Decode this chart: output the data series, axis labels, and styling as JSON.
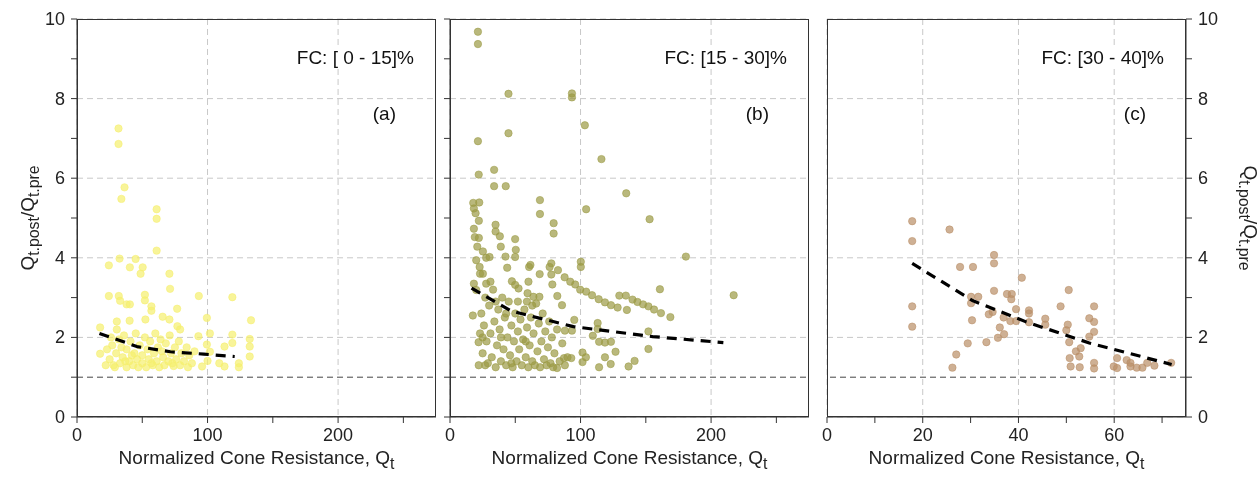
{
  "chart_data": [
    {
      "type": "scatter",
      "xlabel": "Normalized Cone Resistance, Q$_{t}$",
      "ylabel": "Q$_{t.post}$/Q$_{t.pre}$",
      "annotations": [
        "FC: [ 0 - 15]%",
        "(a)"
      ],
      "xlim": [
        0,
        275
      ],
      "xticks": [
        0,
        {
          "value": 50,
          "label": null
        },
        100,
        {
          "value": 150,
          "label": null
        },
        200,
        {
          "value": 250,
          "label": null
        }
      ],
      "ylim": [
        0,
        10
      ],
      "yticks": [
        0,
        {
          "value": 1,
          "label": null
        },
        2,
        {
          "value": 3,
          "label": null
        },
        4,
        {
          "value": 5,
          "label": null
        },
        6,
        {
          "value": 7,
          "label": null
        },
        8,
        {
          "value": 9,
          "label": null
        },
        10
      ],
      "grid": true,
      "marker": "circle",
      "ref_lines": [
        {
          "axis": "y",
          "value": 1,
          "color": "#444444",
          "line_style": "dashed"
        }
      ],
      "series": [
        {
          "color": "#f5ef6e",
          "x": [
            31.8,
            31.8,
            36.4,
            34,
            61,
            61,
            61,
            32.6,
            44.9,
            24.4,
            40.5,
            50.3,
            48.7,
            70.8,
            71.3,
            24.4,
            32,
            33,
            38,
            40.5,
            52,
            52,
            57,
            57,
            76.7,
            93.3,
            119,
            133.3,
            99.5,
            65.6,
            70.8,
            30.5,
            40.3,
            52.4,
            76.9,
            79,
            17.7,
            30.5,
            93,
            101.8,
            99.5,
            101.8,
            100,
            95.8,
            113,
            119,
            119,
            132.3,
            132.3,
            132.3,
            113,
            109,
            124,
            124,
            17.7,
            22,
            25,
            27,
            28,
            30,
            32,
            33,
            35,
            36,
            38,
            38,
            40,
            41,
            43,
            44,
            45,
            46,
            47,
            48,
            50,
            50,
            52,
            53,
            54,
            55,
            56,
            58,
            59,
            60,
            61,
            62,
            63,
            64,
            66,
            67,
            68,
            70,
            71,
            72,
            74,
            75,
            76,
            78,
            79,
            80,
            82,
            84,
            85,
            86,
            88,
            90,
            23,
            26,
            29,
            34,
            37,
            42,
            57,
            65,
            73
          ],
          "values": [
            7.25,
            6.86,
            5.77,
            5.48,
            5.22,
            4.98,
            4.18,
            3.98,
            3.97,
            3.81,
            3.76,
            3.76,
            3.6,
            3.6,
            3.22,
            3.04,
            3.04,
            2.92,
            2.83,
            2.83,
            3.07,
            2.93,
            2.78,
            2.67,
            2.72,
            3.04,
            3.01,
            2.43,
            2.49,
            2.52,
            2.45,
            2.4,
            2.42,
            2.45,
            2.28,
            2.2,
            2.25,
            2.2,
            2.03,
            2.1,
            1.82,
            1.64,
            1.41,
            1.27,
            1.77,
            2.07,
            1.86,
            1.96,
            1.77,
            1.52,
            1.27,
            1.35,
            1.35,
            1.25,
            1.59,
            1.3,
            1.45,
            1.8,
            1.3,
            1.6,
            1.95,
            1.35,
            1.5,
            2.05,
            1.25,
            1.7,
            1.4,
            1.9,
            1.3,
            1.6,
            2.1,
            1.45,
            1.25,
            1.8,
            1.35,
            1.55,
            2.0,
            1.25,
            1.7,
            1.45,
            1.9,
            1.3,
            1.6,
            2.1,
            1.4,
            1.75,
            1.25,
            1.95,
            1.5,
            1.3,
            1.85,
            1.4,
            2.05,
            1.6,
            1.28,
            1.75,
            1.45,
            1.9,
            1.3,
            1.6,
            1.4,
            1.75,
            1.25,
            1.55,
            1.35,
            1.65,
            1.7,
            2.0,
            1.25,
            1.75,
            1.4,
            1.55,
            1.35,
            1.65,
            1.35
          ]
        },
        {
          "type": "line",
          "color": "#000000",
          "line_style": "dashed",
          "marker": "none",
          "x": [
            17.2,
            45.9,
            71.5,
            97.2,
            120.8
          ],
          "values": [
            2.1,
            1.77,
            1.64,
            1.58,
            1.52
          ]
        }
      ]
    },
    {
      "type": "scatter",
      "xlabel": "Normalized Cone Resistance, Q$_{t}$",
      "annotations": [
        "FC: [15 - 30]%",
        "(b)"
      ],
      "xlim": [
        0,
        275
      ],
      "xticks": [
        0,
        {
          "value": 50,
          "label": null
        },
        100,
        {
          "value": 150,
          "label": null
        },
        200,
        {
          "value": 250,
          "label": null
        }
      ],
      "ylim": [
        0,
        10
      ],
      "yticks": [
        0,
        {
          "value": 1,
          "label": null
        },
        2,
        {
          "value": 3,
          "label": null
        },
        4,
        {
          "value": 5,
          "label": null
        },
        6,
        {
          "value": 7,
          "label": null
        },
        8,
        {
          "value": 9,
          "label": null
        },
        10
      ],
      "grid": true,
      "marker": "circle",
      "tick_labels": "x",
      "ref_lines": [
        {
          "axis": "y",
          "value": 1,
          "color": "#444444",
          "line_style": "dashed"
        }
      ],
      "series": [
        {
          "color": "#9b9a45",
          "x": [
            21.4,
            21.4,
            44.8,
            93.4,
            93.4,
            103.3,
            44.8,
            116,
            21.4,
            22,
            33.8,
            33.8,
            42.7,
            135,
            68.9,
            68.9,
            104.3,
            152.9,
            79.4,
            79.4,
            180.7,
            217.3,
            160.8,
            100.2,
            100.2,
            17.8,
            18.3,
            19.6,
            22.4,
            22.1,
            18.3,
            19,
            22.1,
            20.9,
            25.2,
            20.1,
            27.7,
            30.3,
            22.7,
            25.2,
            18.3,
            20.1,
            27.7,
            17.5,
            21.9,
            23,
            34.9,
            34.9,
            38.2,
            38.9,
            42.5,
            49.9,
            50.4,
            49.9,
            43.8,
            60.6,
            61.6,
            60.1,
            47.4,
            49.9,
            52.5,
            68.7,
            76.3,
            77.6,
            82.7,
            87.8,
            92.1,
            95.9,
            99.7,
            104.3,
            108.8,
            113.9,
            118.7,
            123.3,
            128.4,
            129.7,
            134.7,
            135.5,
            139.8,
            143.6,
            147.9,
            152,
            156.3,
            161.6,
            168.8,
            77.6,
            78.4,
            82.2,
            85.8,
            59.4,
            58.9,
            63.9,
            68.5,
            95.2,
            93.4,
            88,
            113.1,
            113.1,
            152,
            109.4,
            114.2,
            118.7,
            123.3,
            126.8,
            152,
            101.5,
            104.1,
            101.5,
            118.7,
            114.2,
            123.1,
            141.4,
            136.8,
            92.9,
            87.3,
            82,
            22,
            24,
            25,
            26,
            27,
            28,
            29,
            30,
            31,
            32,
            33,
            34,
            35,
            36,
            37,
            38,
            39,
            40,
            41,
            42,
            43,
            44,
            45,
            46,
            47,
            48,
            49,
            50,
            51,
            52,
            53,
            54,
            55,
            56,
            57,
            58,
            59,
            60,
            61,
            62,
            63,
            64,
            65,
            66,
            67,
            68,
            69,
            70,
            71,
            72,
            73,
            74,
            75,
            76,
            77,
            78,
            79,
            80,
            82,
            84,
            86,
            88,
            90,
            23,
            25,
            27,
            31,
            35,
            39,
            43,
            47,
            52,
            58,
            63
          ],
          "values": [
            9.68,
            9.37,
            8.12,
            8.13,
            8.03,
            7.33,
            7.13,
            6.48,
            6.93,
            6.09,
            6.21,
            5.8,
            5.8,
            5.62,
            5.45,
            5.1,
            5.22,
            4.97,
            4.87,
            4.61,
            4.03,
            3.06,
            3.21,
            3.9,
            3.77,
            5.38,
            5.24,
            5.12,
            5.39,
            4.93,
            4.73,
            4.52,
            4.5,
            4.28,
            4.16,
            3.94,
            4.0,
            4.02,
            3.77,
            3.6,
            3.35,
            3.19,
            3.35,
            2.55,
            1.88,
            2.1,
            4.83,
            4.66,
            4.54,
            4.28,
            4.03,
            4.47,
            4.2,
            4.02,
            3.75,
            3.77,
            3.82,
            3.4,
            3.41,
            3.32,
            3.23,
            3.59,
            3.77,
            3.86,
            3.69,
            3.51,
            3.4,
            3.33,
            3.2,
            3.15,
            3.06,
            2.96,
            2.88,
            2.81,
            2.75,
            3.05,
            3.05,
            2.69,
            2.95,
            2.89,
            2.83,
            2.78,
            2.7,
            2.61,
            2.51,
            3.58,
            3.33,
            3.04,
            2.81,
            3.11,
            2.9,
            3.02,
            3.02,
            2.44,
            2.17,
            2.17,
            2.36,
            2.21,
            2.15,
            2.04,
            1.89,
            1.87,
            1.89,
            1.64,
            1.71,
            1.62,
            1.5,
            1.38,
            1.5,
            1.25,
            1.33,
            1.41,
            1.27,
            1.48,
            1.48,
            1.23,
            1.3,
            2.6,
            1.6,
            2.3,
            3.0,
            1.9,
            1.35,
            2.8,
            2.1,
            1.5,
            3.2,
            2.4,
            1.25,
            1.8,
            2.7,
            2.2,
            1.4,
            3.0,
            1.7,
            2.5,
            1.3,
            2.0,
            2.9,
            1.55,
            2.3,
            1.25,
            1.9,
            2.6,
            1.4,
            2.15,
            1.7,
            2.45,
            1.3,
            1.95,
            2.7,
            1.5,
            2.25,
            1.25,
            1.8,
            2.5,
            1.4,
            2.1,
            1.3,
            2.85,
            1.65,
            2.35,
            1.25,
            1.9,
            2.6,
            1.45,
            2.15,
            1.3,
            1.75,
            2.4,
            1.35,
            2.0,
            1.25,
            1.6,
            2.2,
            1.4,
            1.85,
            1.3,
            1.5,
            3.6,
            2.0,
            1.3,
            3.4,
            2.9,
            2.0,
            2.6,
            1.35,
            2.9,
            1.9,
            2.8
          ]
        },
        {
          "type": "line",
          "color": "#000000",
          "line_style": "dashed",
          "marker": "none",
          "x": [
            16.5,
            47.1,
            94.6,
            155.2,
            209.4
          ],
          "values": [
            3.24,
            2.66,
            2.27,
            2.02,
            1.87
          ]
        }
      ]
    },
    {
      "type": "scatter",
      "xlabel": "Normalized Cone Resistance, Q$_{t}$",
      "y2label": "Q$_{t.post}$/Q$_{t.pre}$",
      "annotations": [
        "FC: [30 - 40]%",
        "(c)"
      ],
      "xlim": [
        0,
        75
      ],
      "xticks": [
        0,
        {
          "value": 10,
          "label": null
        },
        20,
        {
          "value": 30,
          "label": null
        },
        40,
        {
          "value": 50,
          "label": null
        },
        60,
        {
          "value": 70,
          "label": null
        }
      ],
      "y2lim": [
        0,
        10
      ],
      "y2ticks": [
        0,
        {
          "value": 1,
          "label": null
        },
        2,
        {
          "value": 3,
          "label": null
        },
        4,
        {
          "value": 5,
          "label": null
        },
        6,
        {
          "value": 7,
          "label": null
        },
        8,
        {
          "value": 9,
          "label": null
        },
        10
      ],
      "grid": true,
      "marker": "circle",
      "ref_lines": [
        {
          "axis": "y2",
          "value": 1,
          "color": "#444444",
          "line_style": "dashed"
        }
      ],
      "series": [
        {
          "color": "#b98e66",
          "axis": "y2",
          "x": [
            17.8,
            17.8,
            17.8,
            17.8,
            25.6,
            26.2,
            27,
            27.8,
            30.5,
            30.1,
            31.6,
            30.1,
            30.3,
            29.4,
            33.3,
            33.8,
            34.9,
            34.9,
            34.9,
            34.6,
            36.1,
            35.7,
            37,
            36.9,
            37.6,
            38.6,
            38.5,
            38.3,
            39.5,
            39.5,
            40.7,
            42.2,
            42.2,
            42.2,
            45.6,
            45.6,
            48.8,
            50.5,
            50,
            50.3,
            50.6,
            50.7,
            50.9,
            52,
            52.7,
            52.8,
            53,
            54.8,
            54.8,
            55.8,
            55.8,
            55.8,
            55.8,
            55.8,
            59.9,
            60.6,
            60.6,
            62.6,
            63.4,
            63.4,
            64.7,
            65.9,
            66.9,
            68.4,
            71.9
          ],
          "values": [
            4.92,
            4.42,
            2.78,
            2.27,
            4.71,
            1.24,
            1.57,
            3.77,
            3.77,
            3.02,
            3.02,
            2.86,
            2.43,
            1.85,
            1.88,
            2.58,
            4.07,
            3.86,
            3.17,
            2.64,
            2.25,
            1.99,
            2.08,
            2.5,
            3.09,
            3.09,
            2.96,
            2.41,
            2.71,
            2.41,
            3.5,
            2.68,
            2.6,
            2.38,
            2.47,
            2.32,
            2.78,
            3.19,
            2.18,
            2.32,
            1.88,
            1.48,
            1.27,
            1.65,
            1.52,
            1.25,
            1.73,
            2.02,
            2.48,
            2.78,
            2.14,
            2.39,
            1.36,
            1.22,
            1.27,
            1.48,
            1.23,
            1.43,
            1.36,
            1.27,
            1.24,
            1.24,
            1.36,
            1.29,
            1.36
          ]
        },
        {
          "type": "line",
          "color": "#000000",
          "line_style": "dashed",
          "marker": "none",
          "axis": "y2",
          "x": [
            17.8,
            30.5,
            41.6,
            54.8,
            72
          ],
          "values": [
            3.86,
            2.92,
            2.39,
            1.86,
            1.32
          ]
        }
      ]
    }
  ]
}
